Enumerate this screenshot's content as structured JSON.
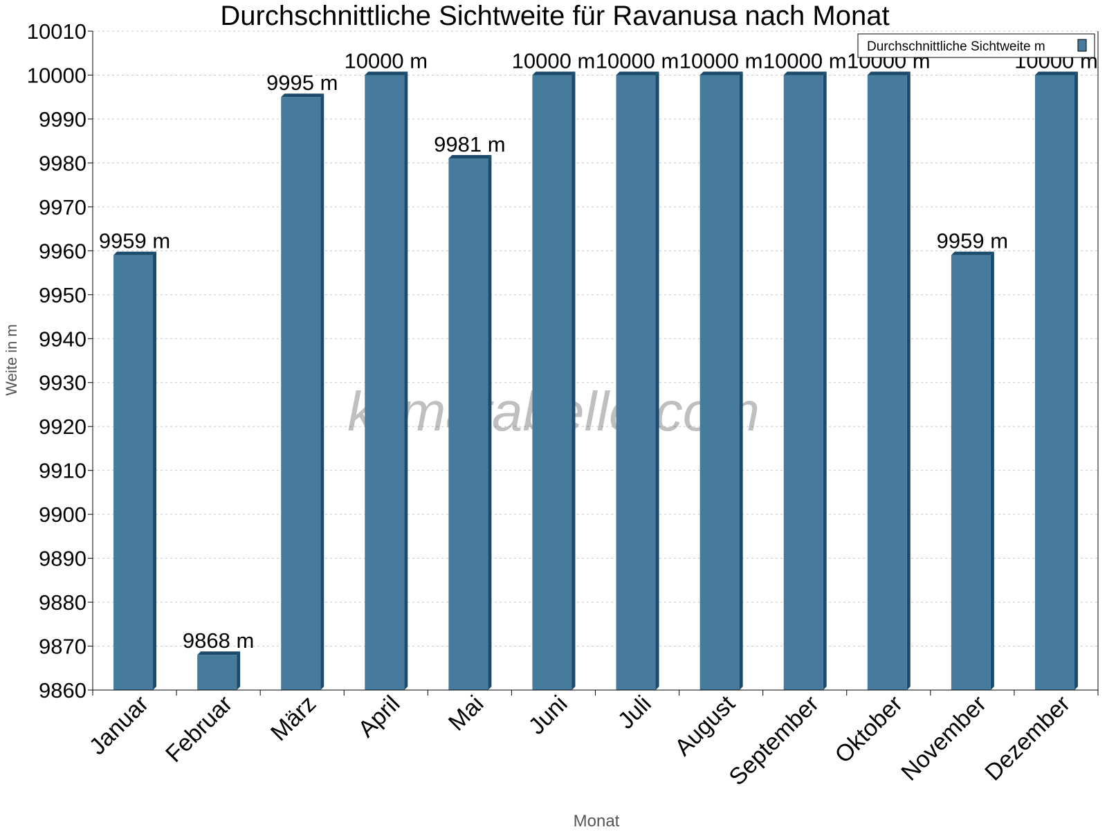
{
  "chart_data": {
    "type": "bar",
    "title": "Durchschnittliche Sichtweite für Ravanusa nach Monat",
    "xlabel": "Monat",
    "ylabel": "Weite in m",
    "categories": [
      "Januar",
      "Februar",
      "März",
      "April",
      "Mai",
      "Juni",
      "Juli",
      "August",
      "September",
      "Oktober",
      "November",
      "Dezember"
    ],
    "series": [
      {
        "name": "Durchschnittliche Sichtweite m",
        "values": [
          9959,
          9868,
          9995,
          10000,
          9981,
          10000,
          10000,
          10000,
          10000,
          10000,
          9959,
          10000
        ],
        "color": "#467b9d",
        "shade_color": "#1b4a6b"
      }
    ],
    "data_labels": [
      "9959 m",
      "9868 m",
      "9995 m",
      "10000 m",
      "9981 m",
      "10000 m",
      "10000 m",
      "10000 m",
      "10000 m",
      "10000 m",
      "9959 m",
      "10000 m"
    ],
    "ylim": [
      9860,
      10010
    ],
    "yticks": [
      9860,
      9870,
      9880,
      9890,
      9900,
      9910,
      9920,
      9930,
      9940,
      9950,
      9960,
      9970,
      9980,
      9990,
      10000,
      10010
    ],
    "grid": true,
    "legend": "top-right",
    "watermark": "klimatabelle.com"
  }
}
